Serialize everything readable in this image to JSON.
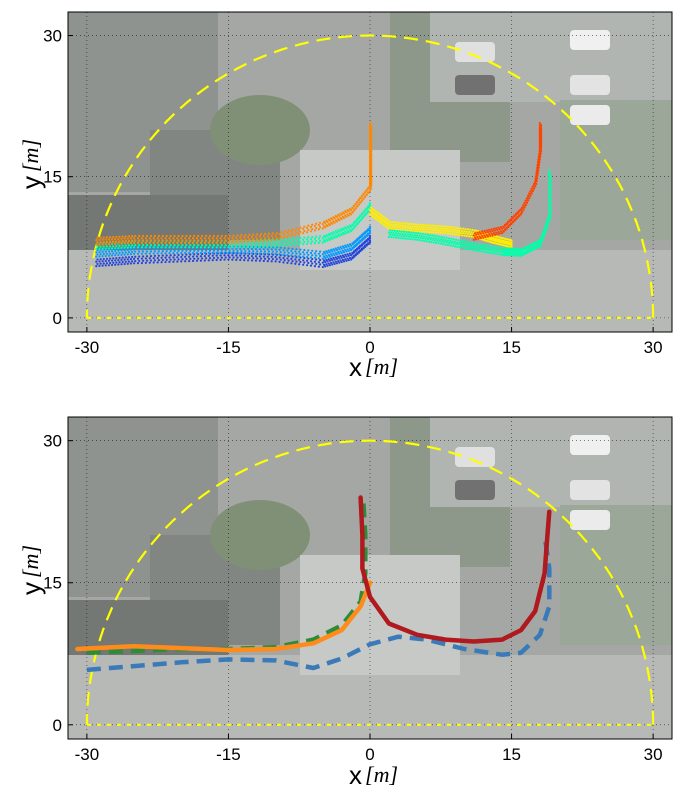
{
  "chart_data": [
    {
      "type": "scatter",
      "title": "",
      "xlabel": "x",
      "ylabel": "y",
      "unit": "m",
      "xlim": [
        -32,
        32
      ],
      "ylim": [
        -1.5,
        32.5
      ],
      "xticks": [
        "-30",
        "-15",
        "0",
        "15",
        "30"
      ],
      "yticks": [
        "0",
        "15",
        "30"
      ],
      "xtick_values": [
        -30,
        -15,
        0,
        15,
        30
      ],
      "ytick_values": [
        0,
        15,
        30
      ],
      "grid": true,
      "background": "aerial-photo",
      "boundary_color": "#ffff00",
      "boundary": {
        "semicircle_radius": 30,
        "base_y": 0
      },
      "colormap": [
        "#0000ff",
        "#0099ff",
        "#00ffcc",
        "#66ff66",
        "#ffff00",
        "#ff9900",
        "#ff3300",
        "#cc0000"
      ],
      "series": [
        {
          "color": "#2244dd",
          "x": [
            -29,
            -25,
            -20,
            -15,
            -10,
            -5,
            -2,
            0
          ],
          "y": [
            5.5,
            5.8,
            6.0,
            6.2,
            6.0,
            5.4,
            6.2,
            8.0
          ]
        },
        {
          "color": "#0099ff",
          "x": [
            -29,
            -25,
            -20,
            -15,
            -10,
            -5,
            -2,
            0
          ],
          "y": [
            6.5,
            6.8,
            6.9,
            6.9,
            6.8,
            6.3,
            7.2,
            9.0
          ]
        },
        {
          "color": "#00ffaa",
          "x": [
            -29,
            -25,
            -20,
            -15,
            -10,
            -5,
            -2,
            0
          ],
          "y": [
            7.3,
            7.5,
            7.5,
            7.5,
            7.6,
            8.0,
            9.2,
            11.5
          ]
        },
        {
          "color": "#ff8800",
          "x": [
            -29,
            -25,
            -20,
            -15,
            -10,
            -5,
            -2,
            0,
            0,
            0
          ],
          "y": [
            7.8,
            8.0,
            8.0,
            8.0,
            8.3,
            9.5,
            11.0,
            13.5,
            17.0,
            20.0
          ]
        },
        {
          "color": "#ffee00",
          "x": [
            0,
            2,
            5,
            8,
            11,
            13,
            15
          ],
          "y": [
            11.0,
            9.5,
            9.2,
            9.0,
            8.6,
            8.0,
            7.5
          ]
        },
        {
          "color": "#00ffaa",
          "x": [
            2,
            5,
            8,
            11,
            14,
            16,
            18,
            19,
            19
          ],
          "y": [
            8.6,
            8.3,
            7.8,
            7.2,
            6.7,
            6.6,
            7.6,
            10.5,
            15.0
          ]
        },
        {
          "color": "#ff4400",
          "x": [
            11,
            14,
            16,
            17.5,
            18,
            18
          ],
          "y": [
            8.3,
            9.0,
            11.0,
            14.0,
            17.5,
            20.0
          ]
        }
      ]
    },
    {
      "type": "line",
      "title": "",
      "xlabel": "x",
      "ylabel": "y",
      "unit": "m",
      "xlim": [
        -32,
        32
      ],
      "ylim": [
        -1.5,
        32.5
      ],
      "xticks": [
        "-30",
        "-15",
        "0",
        "15",
        "30"
      ],
      "yticks": [
        "0",
        "15",
        "30"
      ],
      "xtick_values": [
        -30,
        -15,
        0,
        15,
        30
      ],
      "ytick_values": [
        0,
        15,
        30
      ],
      "grid": true,
      "background": "aerial-photo",
      "boundary_color": "#ffff00",
      "boundary": {
        "semicircle_radius": 30,
        "base_y": 0
      },
      "series": [
        {
          "color": "#3a7ab8",
          "style": "dashed",
          "x": [
            -30,
            -25,
            -20,
            -15,
            -10,
            -6,
            -3,
            0,
            3,
            6,
            10,
            14,
            16,
            18,
            19,
            19,
            18.5
          ],
          "y": [
            5.8,
            6.2,
            6.6,
            6.9,
            6.8,
            6.0,
            7.0,
            8.5,
            9.3,
            9.0,
            8.0,
            7.4,
            7.6,
            9.5,
            12.5,
            16.5,
            20.0
          ]
        },
        {
          "color": "#2e8b3a",
          "style": "dashed",
          "x": [
            -30,
            -25,
            -20,
            -15,
            -10,
            -6,
            -3,
            -1,
            -0.5,
            -0.5,
            -0.7
          ],
          "y": [
            7.6,
            7.8,
            8.0,
            8.0,
            8.2,
            9.0,
            10.5,
            13.0,
            16.0,
            20.0,
            23.5
          ]
        },
        {
          "color": "#ff8c1a",
          "style": "solid",
          "x": [
            -31,
            -25,
            -20,
            -15,
            -10,
            -6,
            -3,
            -1,
            0
          ],
          "y": [
            8.0,
            8.3,
            8.1,
            7.9,
            8.0,
            8.6,
            10.0,
            12.5,
            15.0
          ]
        },
        {
          "color": "#b0191e",
          "style": "solid",
          "x": [
            -1,
            -0.8,
            -0.8,
            0,
            2,
            5,
            8,
            11,
            14,
            16,
            17.5,
            18.5,
            18.8,
            19
          ],
          "y": [
            24.0,
            20.0,
            16.5,
            13.5,
            10.7,
            9.5,
            9.0,
            8.8,
            9.0,
            10.0,
            12.0,
            16.0,
            20.0,
            22.5
          ]
        }
      ]
    }
  ]
}
